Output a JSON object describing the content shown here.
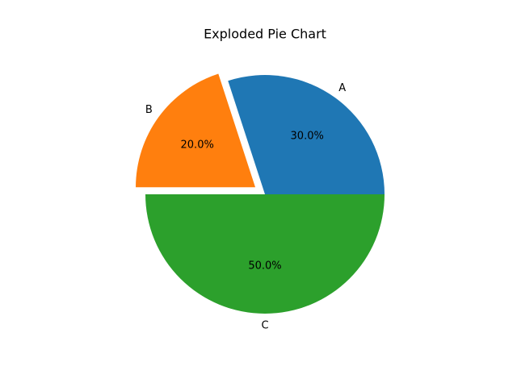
{
  "chart_data": {
    "type": "pie",
    "title": "Exploded Pie Chart",
    "categories": [
      "A",
      "B",
      "C"
    ],
    "values": [
      30,
      20,
      50
    ],
    "value_labels": [
      "30.0%",
      "20.0%",
      "50.0%"
    ],
    "colors": [
      "#1f77b4",
      "#ff7f0e",
      "#2ca02c"
    ],
    "explode": [
      0,
      0.1,
      0
    ]
  }
}
